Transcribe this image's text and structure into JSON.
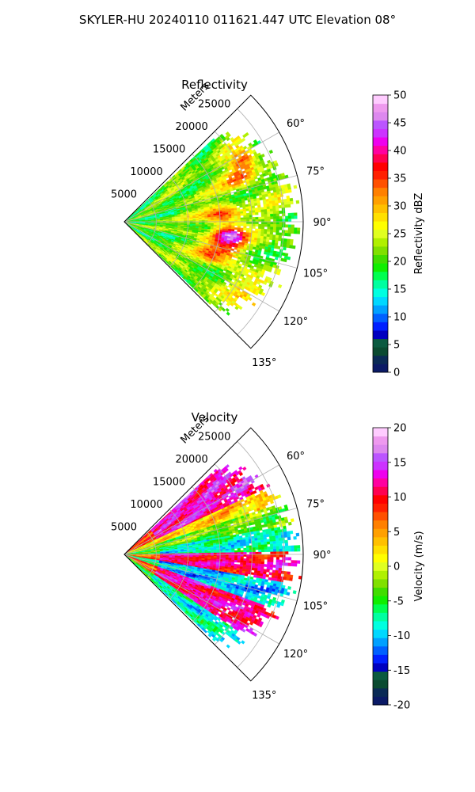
{
  "figure": {
    "suptitle": "SKYLER-HU  20240110  011621.447 UTC Elevation 08°"
  },
  "chart_data": [
    {
      "type": "heatmap",
      "projection": "polar-sector",
      "title": "Reflectivity",
      "radial_axis_label": "Meters",
      "radial_ticks": [
        "5000",
        "10000",
        "15000",
        "20000",
        "25000"
      ],
      "radial_tick_values": [
        5000,
        10000,
        15000,
        20000,
        25000
      ],
      "r_max": 28000,
      "angular_ticks": [
        "60°",
        "75°",
        "90°",
        "105°",
        "120°",
        "135°"
      ],
      "angular_tick_values": [
        60,
        75,
        90,
        105,
        120,
        135
      ],
      "azimuth_range": [
        45,
        135
      ],
      "grid": true,
      "colorbar": {
        "label": "Reflectivity dBZ",
        "ticks": [
          "0",
          "5",
          "10",
          "15",
          "20",
          "25",
          "30",
          "35",
          "40",
          "45",
          "50"
        ],
        "tick_values": [
          0,
          5,
          10,
          15,
          20,
          25,
          30,
          35,
          40,
          45,
          50
        ],
        "range": [
          0,
          50
        ],
        "colors": [
          "#0b1a66",
          "#0a2a55",
          "#0a4a30",
          "#0b5a40",
          "#0000c0",
          "#0020ff",
          "#0060ff",
          "#00a0ff",
          "#00d8ff",
          "#00ffe0",
          "#00ffa0",
          "#00ff50",
          "#10ee00",
          "#40dd00",
          "#80e000",
          "#b0f000",
          "#e0ff20",
          "#ffff00",
          "#ffe000",
          "#ffc000",
          "#ffa000",
          "#ff8000",
          "#ff5000",
          "#ff2000",
          "#ff0000",
          "#ff0050",
          "#ff00a0",
          "#ee00ee",
          "#cc33ff",
          "#bb55ff",
          "#dd88ee",
          "#ee99ee",
          "#ffccff"
        ]
      },
      "approx_structure": [
        {
          "feature": "echo field",
          "value_range": [
            15,
            30
          ],
          "extent": "most of sector, ~4000-25000 m"
        },
        {
          "feature": "cores",
          "value_range": [
            33,
            45
          ],
          "location": "~80-110° at 9000-18000 m"
        },
        {
          "feature": "strong core",
          "value": 45,
          "location": "~98-105° near 15000 m"
        }
      ]
    },
    {
      "type": "heatmap",
      "projection": "polar-sector",
      "title": "Velocity",
      "radial_axis_label": "Meters",
      "radial_ticks": [
        "5000",
        "10000",
        "15000",
        "20000",
        "25000"
      ],
      "radial_tick_values": [
        5000,
        10000,
        15000,
        20000,
        25000
      ],
      "r_max": 28000,
      "angular_ticks": [
        "60°",
        "75°",
        "90°",
        "105°",
        "120°",
        "135°"
      ],
      "angular_tick_values": [
        60,
        75,
        90,
        105,
        120,
        135
      ],
      "azimuth_range": [
        45,
        135
      ],
      "grid": true,
      "colorbar": {
        "label": "Velocity (m/s)",
        "ticks": [
          "-20",
          "-15",
          "-10",
          "-5",
          "0",
          "5",
          "10",
          "15",
          "20"
        ],
        "tick_values": [
          -20,
          -15,
          -10,
          -5,
          0,
          5,
          10,
          15,
          20
        ],
        "range": [
          -20,
          20
        ],
        "colors": [
          "#0b1a66",
          "#0a2a55",
          "#0a4a30",
          "#0b5a40",
          "#0000c0",
          "#0020ff",
          "#0060ff",
          "#00a0ff",
          "#00d8ff",
          "#00ffe0",
          "#00ffa0",
          "#00ff50",
          "#10ee00",
          "#40dd00",
          "#80e000",
          "#b0f000",
          "#e0ff20",
          "#ffff00",
          "#ffe000",
          "#ffc000",
          "#ffa000",
          "#ff8000",
          "#ff5000",
          "#ff2000",
          "#ff0000",
          "#ff0050",
          "#ff00a0",
          "#ee00ee",
          "#cc33ff",
          "#bb55ff",
          "#dd88ee",
          "#ee99ee",
          "#ffccff"
        ]
      },
      "approx_structure": [
        {
          "feature": "outbound band",
          "value_range": [
            10,
            17
          ],
          "location": "~50-65° at 8000-25000 m"
        },
        {
          "feature": "near-zero band",
          "value_range": [
            -2,
            3
          ],
          "location": "~65-80°"
        },
        {
          "feature": "inbound band",
          "value_range": [
            -12,
            -5
          ],
          "location": "~80-90°"
        },
        {
          "feature": "outbound band",
          "value_range": [
            8,
            15
          ],
          "location": "~90-100°"
        },
        {
          "feature": "inbound band",
          "value_range": [
            -12,
            -8
          ],
          "location": "~100-110°"
        },
        {
          "feature": "outbound band",
          "value_range": [
            10,
            15
          ],
          "location": "~112-125°"
        },
        {
          "feature": "mixed",
          "value_range": [
            -10,
            -5
          ],
          "location": "~125-135° far range"
        }
      ]
    }
  ]
}
